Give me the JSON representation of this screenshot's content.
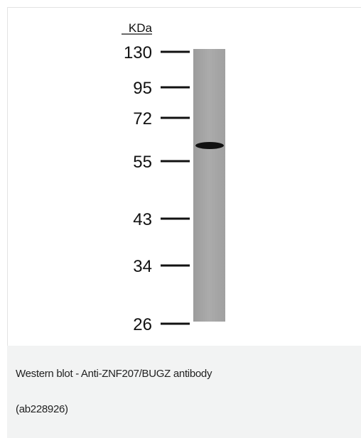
{
  "figure": {
    "unit_label": "KDa",
    "markers": [
      "130",
      "95",
      "72",
      "55",
      "43",
      "34",
      "26"
    ]
  },
  "caption": {
    "lines": [
      "Western blot - Anti-ZNF207/BUGZ antibody",
      "(ab228926)"
    ]
  }
}
